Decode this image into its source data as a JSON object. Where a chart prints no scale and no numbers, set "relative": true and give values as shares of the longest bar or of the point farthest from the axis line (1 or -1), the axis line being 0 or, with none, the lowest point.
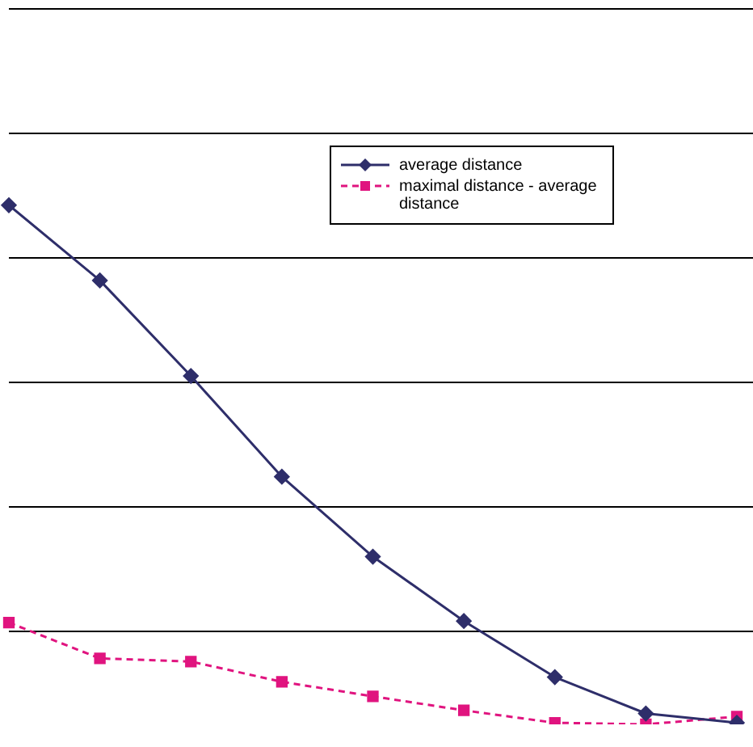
{
  "chart_data": {
    "type": "line",
    "relative": true,
    "grid": "y",
    "legend": "top right",
    "categories": [
      null,
      null,
      null,
      null,
      null,
      null,
      null,
      null,
      null
    ],
    "series": [
      {
        "name": "average distance",
        "color": "#2e2e6a",
        "marker": "diamond",
        "line_style": "solid",
        "values": [
          1,
          0.855,
          0.671,
          0.477,
          0.323,
          0.199,
          0.091,
          0.021,
          0.003
        ]
      },
      {
        "name": "maximal distance - average distance",
        "color": "#e0147f",
        "marker": "square",
        "line_style": "dashed",
        "values": [
          0.196,
          0.127,
          0.121,
          0.082,
          0.054,
          0.027,
          0.003,
          0,
          0.015
        ]
      }
    ]
  }
}
